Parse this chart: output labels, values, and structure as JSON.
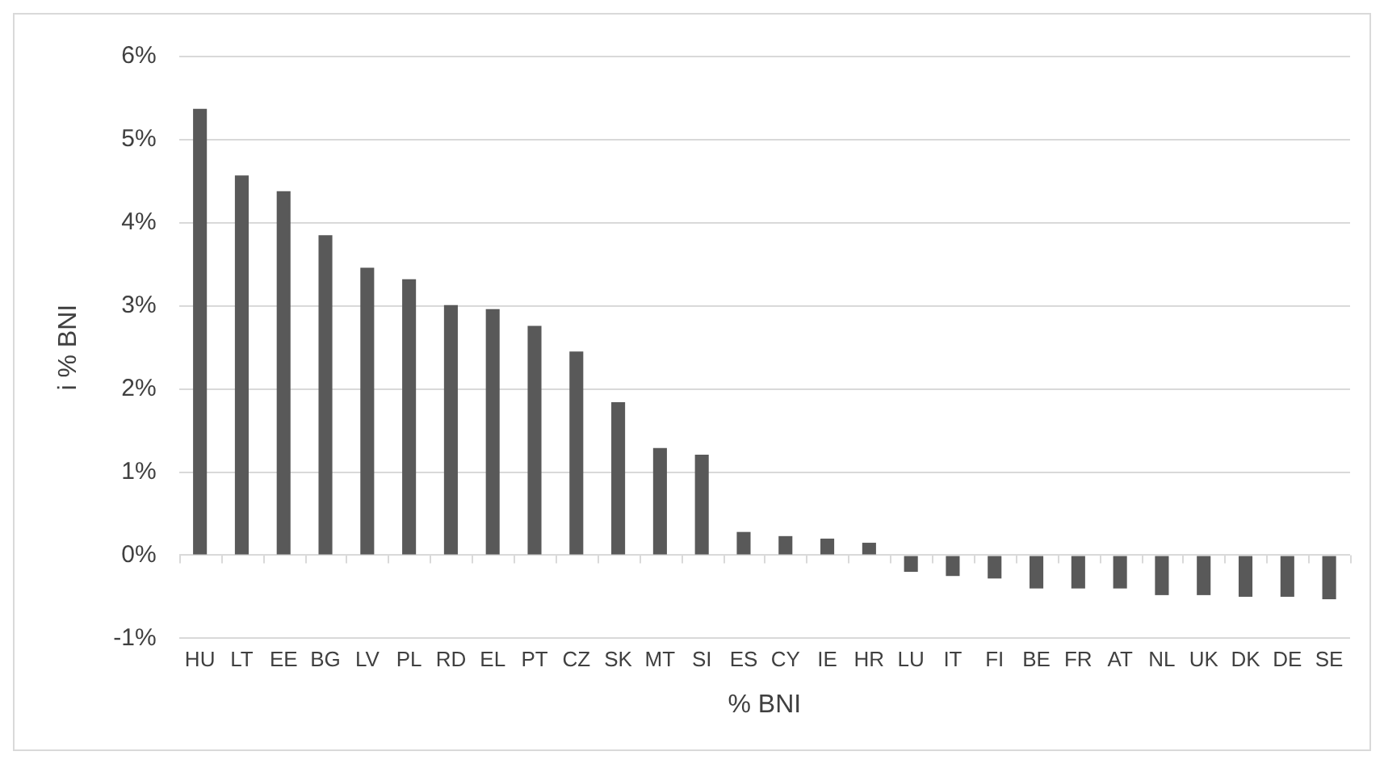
{
  "chart_data": {
    "type": "bar",
    "xlabel": "% BNI",
    "ylabel": "i % BNI",
    "categories": [
      "HU",
      "LT",
      "EE",
      "BG",
      "LV",
      "PL",
      "RD",
      "EL",
      "PT",
      "CZ",
      "SK",
      "MT",
      "SI",
      "ES",
      "CY",
      "IE",
      "HR",
      "LU",
      "IT",
      "FI",
      "BE",
      "FR",
      "AT",
      "NL",
      "UK",
      "DK",
      "DE",
      "SE"
    ],
    "values": [
      5.37,
      4.57,
      4.38,
      3.85,
      3.46,
      3.32,
      3.01,
      2.96,
      2.76,
      2.45,
      1.84,
      1.29,
      1.21,
      0.28,
      0.23,
      0.2,
      0.15,
      -0.2,
      -0.25,
      -0.28,
      -0.4,
      -0.4,
      -0.4,
      -0.48,
      -0.48,
      -0.5,
      -0.5,
      -0.53
    ],
    "color": "#595959",
    "ylim": [
      -1,
      6
    ],
    "yticks": [
      {
        "value": -1,
        "label": "-1%"
      },
      {
        "value": 0,
        "label": "0%"
      },
      {
        "value": 1,
        "label": "1%"
      },
      {
        "value": 2,
        "label": "2%"
      },
      {
        "value": 3,
        "label": "3%"
      },
      {
        "value": 4,
        "label": "4%"
      },
      {
        "value": 5,
        "label": "5%"
      },
      {
        "value": 6,
        "label": "6%"
      }
    ],
    "grid": "y",
    "legend": false
  }
}
